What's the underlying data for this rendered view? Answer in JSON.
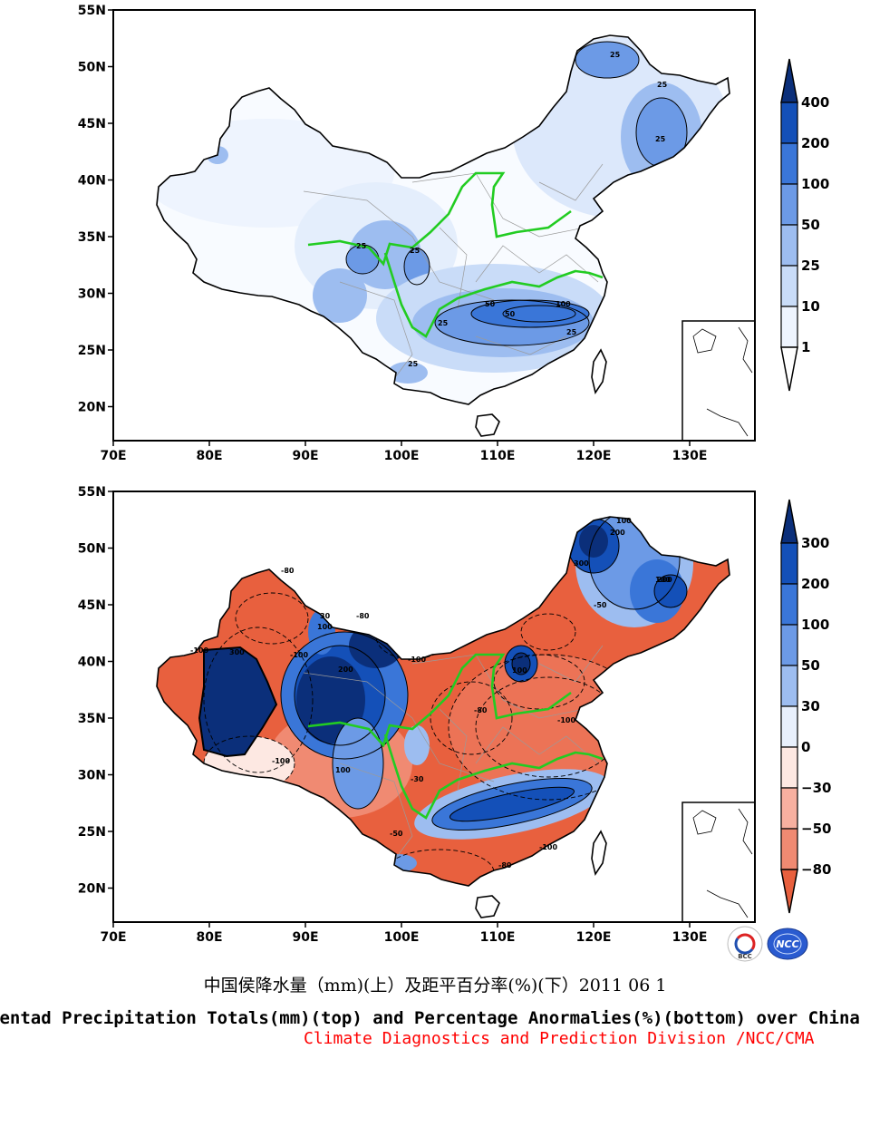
{
  "top_panel": {
    "lat_labels": [
      "55N",
      "50N",
      "45N",
      "40N",
      "35N",
      "30N",
      "25N",
      "20N"
    ],
    "lon_labels": [
      "70E",
      "80E",
      "90E",
      "100E",
      "110E",
      "120E",
      "130E"
    ],
    "colorbar": {
      "labels": [
        "400",
        "200",
        "100",
        "50",
        "25",
        "10",
        "1"
      ],
      "colors": [
        "#0b2f7a",
        "#1450b8",
        "#3a76d8",
        "#6c9ae6",
        "#9dbdf0",
        "#c9dcf8",
        "#eef4fe",
        "#ffffff"
      ]
    },
    "contour_labels": [
      "25",
      "25",
      "25",
      "25",
      "25",
      "25",
      "50",
      "50",
      "100",
      "25",
      "25"
    ]
  },
  "bottom_panel": {
    "lat_labels": [
      "55N",
      "50N",
      "45N",
      "40N",
      "35N",
      "30N",
      "25N",
      "20N"
    ],
    "lon_labels": [
      "70E",
      "80E",
      "90E",
      "100E",
      "110E",
      "120E",
      "130E"
    ],
    "colorbar": {
      "labels": [
        "300",
        "200",
        "100",
        "50",
        "30",
        "0",
        "−30",
        "−50",
        "−80"
      ],
      "colors": [
        "#0b2f7a",
        "#1450b8",
        "#3a76d8",
        "#6c9ae6",
        "#9dbdf0",
        "#e8f0fc",
        "#fde8e2",
        "#f7b0a0",
        "#f08a72",
        "#e8603e"
      ]
    },
    "contour_labels": [
      "100",
      "200",
      "300",
      "200",
      "-80",
      "-100",
      "300",
      "-100",
      "100",
      "-80",
      "-100",
      "100",
      "100",
      "-80",
      "-50",
      "-100",
      "200",
      "-30",
      "-50",
      "-100",
      "100",
      "30",
      "-80",
      "-100"
    ]
  },
  "title_cn": "中国侯降水量（mm)(上）及距平百分率(%)(下）2011 06 1",
  "title_en": "Pentad Precipitation Totals(mm)(top) and Percentage Anormalies(%)(bottom) over China",
  "title_division": "Climate Diagnostics and Prediction Division /NCC/CMA",
  "logos": {
    "bcc": "BCC",
    "ncc": "NCC"
  },
  "line_colors": {
    "border": "#000000",
    "rivers": "#22cc22",
    "provinces": "#9a9a9a"
  }
}
